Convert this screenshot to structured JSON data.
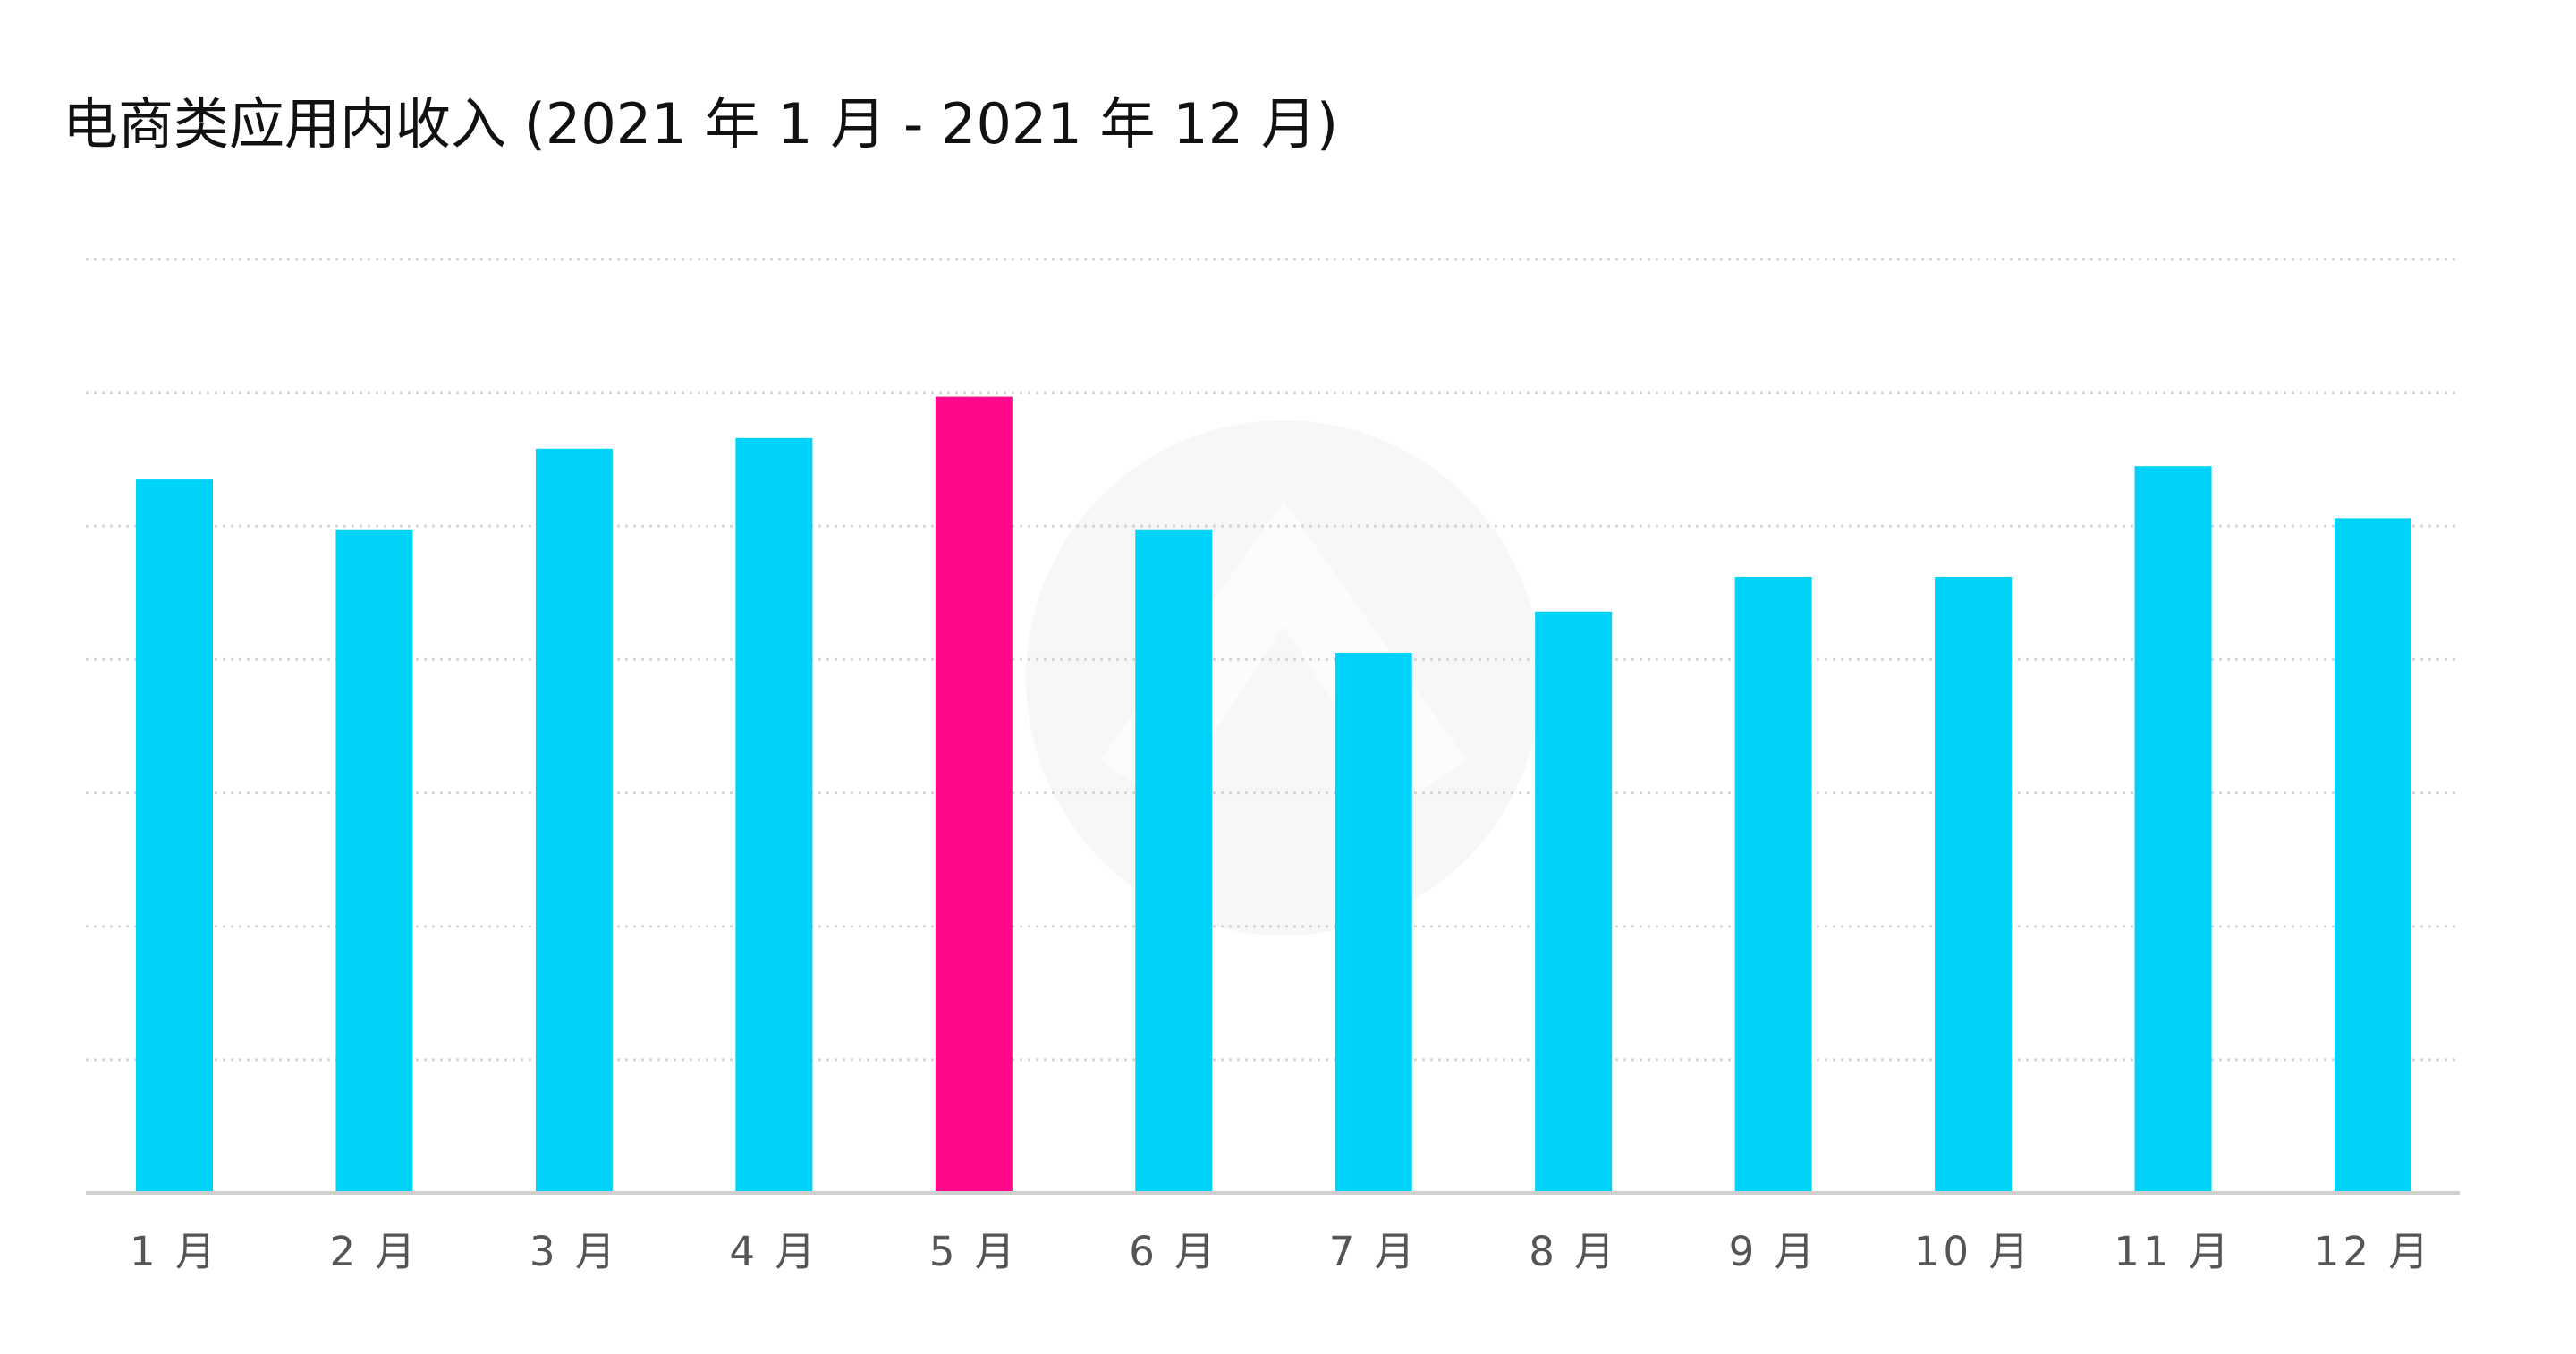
{
  "chart_data": {
    "type": "bar",
    "title": "电商类应用内收入 (2021 年 1 月 - 2021 年 12 月)",
    "xlabel": "",
    "ylabel": "",
    "ylim": [
      0,
      7
    ],
    "grid": true,
    "y_tick_labels_shown": false,
    "categories": [
      "1 月",
      "2 月",
      "3 月",
      "4 月",
      "5 月",
      "6 月",
      "7 月",
      "8 月",
      "9 月",
      "10 月",
      "11 月",
      "12 月"
    ],
    "values": [
      5.35,
      4.97,
      5.58,
      5.66,
      5.97,
      4.97,
      4.05,
      4.36,
      4.62,
      4.62,
      5.45,
      5.06
    ],
    "highlight_index": 4,
    "colors": {
      "bar": "#00d3f9",
      "highlight": "#fe088c",
      "grid": "#d6d6d6",
      "axis": "#cfcfcf"
    }
  }
}
